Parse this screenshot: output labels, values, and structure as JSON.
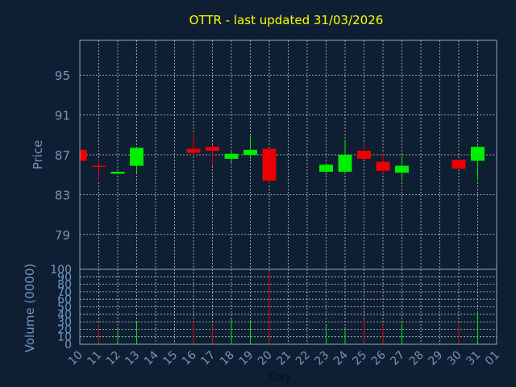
{
  "chart_data": {
    "type": "candlestick",
    "title": "OTTR - last updated 31/03/2026",
    "xlabel": "Day",
    "ylabel": "Price",
    "volume_ylabel": "Volume (0000)",
    "x_ticks": [
      "10",
      "11",
      "12",
      "13",
      "14",
      "15",
      "16",
      "17",
      "18",
      "19",
      "20",
      "21",
      "22",
      "23",
      "24",
      "25",
      "26",
      "27",
      "28",
      "29",
      "30",
      "31",
      "01"
    ],
    "ylim": [
      75.5,
      98.5
    ],
    "y_ticks": [
      79,
      83,
      87,
      91,
      95
    ],
    "volume_ylim": [
      0,
      100
    ],
    "volume_ticks": [
      0,
      10,
      20,
      30,
      40,
      50,
      60,
      70,
      80,
      90,
      100
    ],
    "grid": true,
    "colors": {
      "background": "#0f1f33",
      "title": "#ffff00",
      "axis_text": "#6f95bf",
      "grid": "#c8c8c8",
      "up": "#00ee00",
      "down": "#ee0000"
    },
    "candles": [
      {
        "day": "10",
        "open": 87.5,
        "high": 87.5,
        "low": 86.3,
        "close": 86.4
      },
      {
        "day": "11",
        "open": 85.9,
        "high": 86.6,
        "low": 84.4,
        "close": 85.8
      },
      {
        "day": "12",
        "open": 85.1,
        "high": 85.3,
        "low": 85.1,
        "close": 85.3
      },
      {
        "day": "13",
        "open": 85.9,
        "high": 87.8,
        "low": 85.2,
        "close": 87.7
      },
      {
        "day": "16",
        "open": 87.6,
        "high": 89.1,
        "low": 87.0,
        "close": 87.2
      },
      {
        "day": "17",
        "open": 87.8,
        "high": 88.0,
        "low": 85.9,
        "close": 87.4
      },
      {
        "day": "18",
        "open": 86.6,
        "high": 87.4,
        "low": 86.2,
        "close": 87.1
      },
      {
        "day": "19",
        "open": 87.0,
        "high": 88.9,
        "low": 86.6,
        "close": 87.5
      },
      {
        "day": "20",
        "open": 87.6,
        "high": 87.6,
        "low": 84.1,
        "close": 84.4
      },
      {
        "day": "23",
        "open": 85.3,
        "high": 86.1,
        "low": 85.0,
        "close": 86.0
      },
      {
        "day": "24",
        "open": 85.3,
        "high": 88.5,
        "low": 85.1,
        "close": 87.0
      },
      {
        "day": "25",
        "open": 87.4,
        "high": 88.2,
        "low": 86.5,
        "close": 86.6
      },
      {
        "day": "26",
        "open": 86.3,
        "high": 87.2,
        "low": 85.1,
        "close": 85.4
      },
      {
        "day": "27",
        "open": 85.2,
        "high": 86.9,
        "low": 84.5,
        "close": 85.9
      },
      {
        "day": "30",
        "open": 86.5,
        "high": 86.5,
        "low": 85.6,
        "close": 85.6
      },
      {
        "day": "31",
        "open": 86.4,
        "high": 87.9,
        "low": 84.4,
        "close": 87.8
      }
    ],
    "volume": [
      {
        "day": "10",
        "value": 18
      },
      {
        "day": "11",
        "value": 27
      },
      {
        "day": "12",
        "value": 20
      },
      {
        "day": "13",
        "value": 29
      },
      {
        "day": "16",
        "value": 30
      },
      {
        "day": "17",
        "value": 26
      },
      {
        "day": "18",
        "value": 33
      },
      {
        "day": "19",
        "value": 32
      },
      {
        "day": "20",
        "value": 98
      },
      {
        "day": "23",
        "value": 26
      },
      {
        "day": "24",
        "value": 21
      },
      {
        "day": "25",
        "value": 33
      },
      {
        "day": "26",
        "value": 26
      },
      {
        "day": "27",
        "value": 28
      },
      {
        "day": "30",
        "value": 28
      },
      {
        "day": "31",
        "value": 44
      }
    ]
  }
}
